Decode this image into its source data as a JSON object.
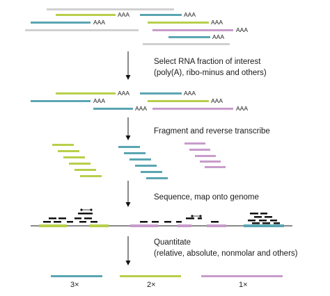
{
  "colors": {
    "teal": "#5aa5b2",
    "green": "#b7cf4a",
    "purple": "#c79ccb",
    "gray": "#d0d0d0",
    "black": "#111111"
  },
  "poly_a_label": "AAA",
  "steps": [
    {
      "id": "select",
      "line1": "Select RNA fraction of interest",
      "line2": "(poly(A), ribo-minus and others)"
    },
    {
      "id": "fragment",
      "line1": "Fragment and reverse transcribe",
      "line2": ""
    },
    {
      "id": "sequence",
      "line1": "Sequence, map onto genome",
      "line2": ""
    },
    {
      "id": "quantitate",
      "line1": "Quantitate",
      "line2": "(relative, absolute, nonmolar and others)"
    }
  ],
  "quantities": [
    {
      "transcript": "teal",
      "label": "3×"
    },
    {
      "transcript": "green",
      "label": "2×"
    },
    {
      "transcript": "purple",
      "label": "1×"
    }
  ]
}
